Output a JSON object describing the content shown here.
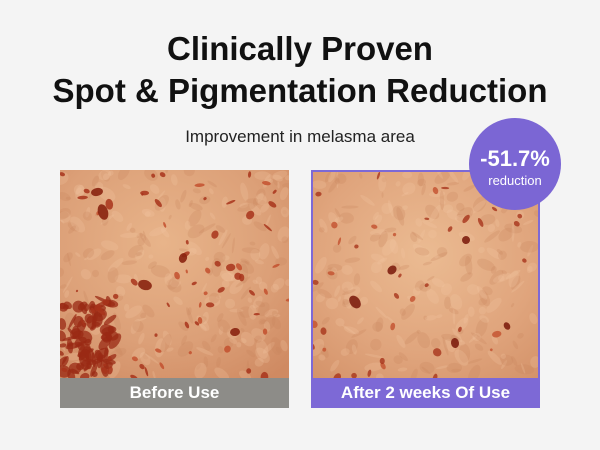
{
  "title_lines": [
    "Clinically Proven",
    "Spot & Pigmentation Reduction"
  ],
  "subtitle": "Improvement in melasma area",
  "badge": {
    "value": "-51.7%",
    "label": "reduction"
  },
  "panels": [
    {
      "caption": "Before Use"
    },
    {
      "caption": "After 2 weeks Of Use"
    }
  ]
}
